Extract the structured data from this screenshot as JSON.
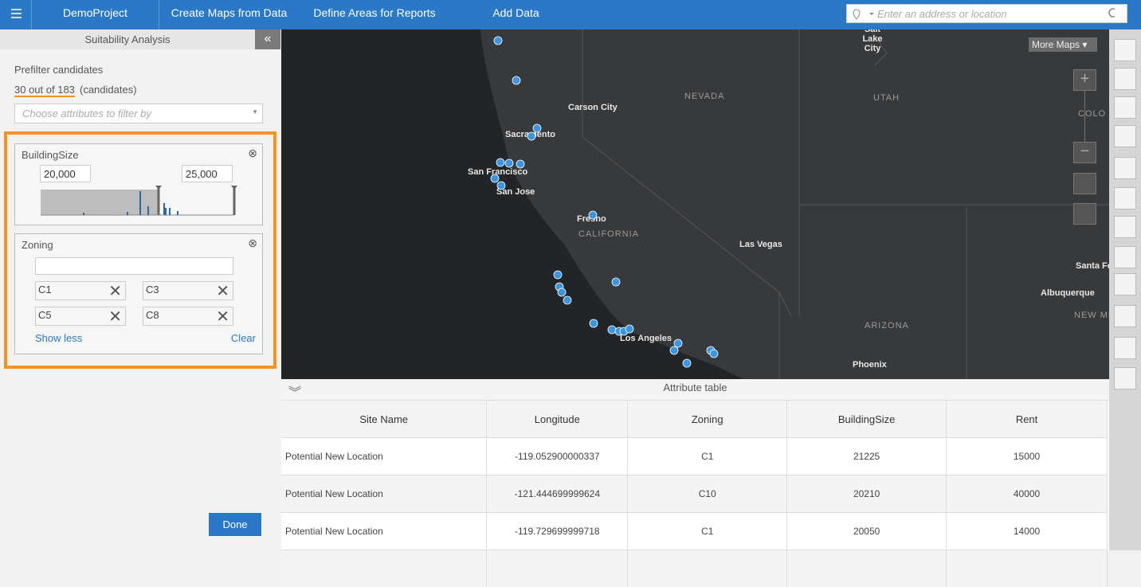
{
  "nav": {
    "items": [
      "DemoProject",
      "Create Maps from Data",
      "Define Areas for Reports",
      "Add Data"
    ],
    "search_placeholder": "Enter an address or location"
  },
  "panel": {
    "title": "Suitability Analysis",
    "section": "Prefilter candidates",
    "count": "30 out of 183",
    "count_suffix": "(candidates)",
    "filter_placeholder": "Choose attributes to filter by",
    "building_filter": {
      "label": "BuildingSize",
      "min": "20,000",
      "max": "25,000"
    },
    "zoning_filter": {
      "label": "Zoning",
      "chips": [
        "C1",
        "C3",
        "C5",
        "C8"
      ],
      "show_less": "Show less",
      "clear": "Clear"
    },
    "done": "Done"
  },
  "map": {
    "more_maps": "More Maps",
    "labels": [
      "Salt Lake City",
      "Carson City",
      "NEVADA",
      "UTAH",
      "COLO",
      "Sacramento",
      "San Francisco",
      "San Jose",
      "Fresno",
      "CALIFORNIA",
      "Las Vegas",
      "Santa Fe",
      "Albuquerque",
      "NEW MEXICO",
      "ARIZONA",
      "Los Angeles",
      "Phoenix"
    ]
  },
  "table": {
    "title": "Attribute table",
    "columns": [
      "Site Name",
      "Longitude",
      "Zoning",
      "BuildingSize",
      "Rent"
    ],
    "rows": [
      [
        "Potential New Location",
        "-119.052900000337",
        "C1",
        "21225",
        "15000"
      ],
      [
        "Potential New Location",
        "-121.444699999624",
        "C10",
        "20210",
        "40000"
      ],
      [
        "Potential New Location",
        "-119.729699999718",
        "C1",
        "20050",
        "14000"
      ]
    ]
  }
}
